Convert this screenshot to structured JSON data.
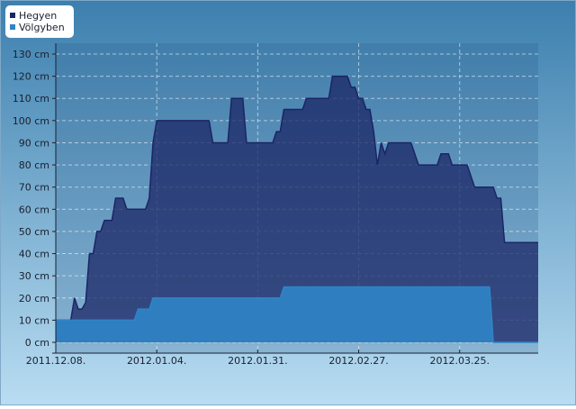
{
  "chart_data": {
    "type": "area",
    "xlim": [
      "2011-12-08",
      "2012-04-15"
    ],
    "xticks": [
      {
        "value": "2011-12-08",
        "label": "2011.12.08."
      },
      {
        "value": "2012-01-04",
        "label": "2012.01.04."
      },
      {
        "value": "2012-01-31",
        "label": "2012.01.31."
      },
      {
        "value": "2012-02-27",
        "label": "2012.02.27."
      },
      {
        "value": "2012-03-25",
        "label": "2012.03.25."
      }
    ],
    "ylim": [
      0,
      130
    ],
    "yticks": [
      {
        "value": 0,
        "label": "0 cm"
      },
      {
        "value": 10,
        "label": "10 cm"
      },
      {
        "value": 20,
        "label": "20 cm"
      },
      {
        "value": 30,
        "label": "30 cm"
      },
      {
        "value": 40,
        "label": "40 cm"
      },
      {
        "value": 50,
        "label": "50 cm"
      },
      {
        "value": 60,
        "label": "60 cm"
      },
      {
        "value": 70,
        "label": "70 cm"
      },
      {
        "value": 80,
        "label": "80 cm"
      },
      {
        "value": 90,
        "label": "90 cm"
      },
      {
        "value": 100,
        "label": "100 cm"
      },
      {
        "value": 110,
        "label": "110 cm"
      },
      {
        "value": 120,
        "label": "120 cm"
      },
      {
        "value": 130,
        "label": "130 cm"
      }
    ],
    "grid": true,
    "legend": "top-left",
    "series": [
      {
        "name": "Hegyen",
        "color": "#1b2566",
        "x": [
          "2011-12-08",
          "2011-12-12",
          "2011-12-13",
          "2011-12-14",
          "2011-12-15",
          "2011-12-16",
          "2011-12-17",
          "2011-12-18",
          "2011-12-19",
          "2011-12-20",
          "2011-12-21",
          "2011-12-23",
          "2011-12-24",
          "2011-12-26",
          "2011-12-27",
          "2012-01-01",
          "2012-01-02",
          "2012-01-03",
          "2012-01-04",
          "2012-01-18",
          "2012-01-19",
          "2012-01-23",
          "2012-01-24",
          "2012-01-27",
          "2012-01-28",
          "2012-02-04",
          "2012-02-05",
          "2012-02-06",
          "2012-02-07",
          "2012-02-12",
          "2012-02-13",
          "2012-02-19",
          "2012-02-20",
          "2012-02-24",
          "2012-02-25",
          "2012-02-26",
          "2012-02-27",
          "2012-02-28",
          "2012-02-29",
          "2012-03-01",
          "2012-03-02",
          "2012-03-03",
          "2012-03-04",
          "2012-03-05",
          "2012-03-06",
          "2012-03-12",
          "2012-03-14",
          "2012-03-19",
          "2012-03-20",
          "2012-03-22",
          "2012-03-23",
          "2012-03-27",
          "2012-03-29",
          "2012-04-03",
          "2012-04-04",
          "2012-04-05",
          "2012-04-06",
          "2012-04-15"
        ],
        "values": [
          10,
          10,
          20,
          15,
          15,
          18,
          40,
          40,
          50,
          50,
          55,
          55,
          65,
          65,
          60,
          60,
          65,
          90,
          100,
          100,
          90,
          90,
          110,
          110,
          90,
          90,
          95,
          95,
          105,
          105,
          110,
          110,
          120,
          120,
          115,
          115,
          110,
          110,
          105,
          105,
          95,
          80,
          90,
          85,
          90,
          90,
          80,
          80,
          85,
          85,
          80,
          80,
          70,
          70,
          65,
          65,
          45,
          45
        ]
      },
      {
        "name": "Völgyben",
        "color": "#2f84c6",
        "x": [
          "2011-12-08",
          "2011-12-29",
          "2011-12-30",
          "2012-01-02",
          "2012-01-03",
          "2012-02-06",
          "2012-02-07",
          "2012-04-02",
          "2012-04-03",
          "2012-04-15"
        ],
        "values": [
          10,
          10,
          15,
          15,
          20,
          20,
          25,
          25,
          0,
          0
        ]
      }
    ]
  }
}
